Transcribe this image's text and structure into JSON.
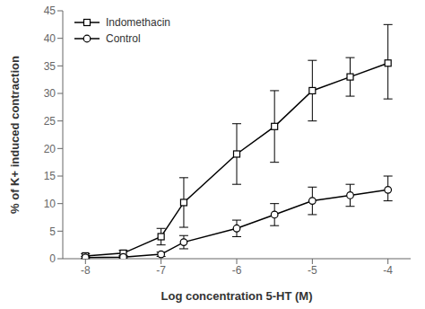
{
  "chart_data": {
    "type": "line",
    "xlabel": "Log concentration 5-HT (M)",
    "ylabel": "% of K+ induced contraction",
    "x": [
      -8,
      -7.5,
      -7,
      -6.7,
      -6,
      -5.5,
      -5,
      -4.5,
      -4
    ],
    "xlim": [
      -8.3,
      -3.7
    ],
    "xticks": [
      -8,
      -7,
      -6,
      -5,
      -4
    ],
    "ylim": [
      0,
      45
    ],
    "yticks": [
      0,
      5,
      10,
      15,
      20,
      25,
      30,
      35,
      40,
      45
    ],
    "grid": false,
    "legend": "upper left",
    "series": [
      {
        "name": "Indomethacin",
        "color": "black",
        "marker": "square",
        "values": [
          0.5,
          1.0,
          4.0,
          10.2,
          19.0,
          24.0,
          30.5,
          33.0,
          35.5
        ],
        "error_low": [
          0.4,
          0.5,
          1.5,
          4.5,
          5.5,
          6.5,
          5.5,
          3.5,
          6.5
        ],
        "error_high": [
          0.4,
          0.5,
          1.5,
          4.5,
          5.5,
          6.5,
          5.5,
          3.5,
          7.0
        ]
      },
      {
        "name": "Control",
        "color": "black",
        "marker": "circle",
        "values": [
          0.2,
          0.3,
          0.8,
          3.0,
          5.5,
          8.0,
          10.5,
          11.5,
          12.5
        ],
        "error_low": [
          0.2,
          0.2,
          0.4,
          1.2,
          1.5,
          2.0,
          2.5,
          2.0,
          2.0
        ],
        "error_high": [
          0.2,
          0.2,
          0.4,
          1.2,
          1.5,
          2.0,
          2.5,
          2.0,
          2.5
        ]
      }
    ]
  }
}
